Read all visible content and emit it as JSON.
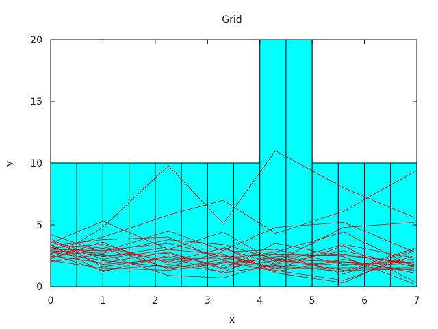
{
  "chart_data": {
    "type": "bar",
    "title": "Grid",
    "xlabel": "x",
    "ylabel": "y",
    "xlim": [
      0,
      7
    ],
    "ylim": [
      0,
      20
    ],
    "xticks": [
      0,
      1,
      2,
      3,
      4,
      5,
      6,
      7
    ],
    "yticks": [
      0,
      5,
      10,
      15,
      20
    ],
    "grid": false,
    "legend": "none",
    "bar_color": "#00ffff",
    "line_color": "#e60000",
    "bars": [
      {
        "x0": 0.0,
        "x1": 0.5,
        "value": 10
      },
      {
        "x0": 0.5,
        "x1": 1.0,
        "value": 10
      },
      {
        "x0": 1.0,
        "x1": 1.5,
        "value": 10
      },
      {
        "x0": 1.5,
        "x1": 2.0,
        "value": 10
      },
      {
        "x0": 2.0,
        "x1": 2.5,
        "value": 10
      },
      {
        "x0": 2.5,
        "x1": 3.0,
        "value": 10
      },
      {
        "x0": 3.0,
        "x1": 3.5,
        "value": 10
      },
      {
        "x0": 3.5,
        "x1": 4.0,
        "value": 10
      },
      {
        "x0": 4.0,
        "x1": 4.5,
        "value": 20
      },
      {
        "x0": 4.5,
        "x1": 5.0,
        "value": 20
      },
      {
        "x0": 5.0,
        "x1": 5.5,
        "value": 10
      },
      {
        "x0": 5.5,
        "x1": 6.0,
        "value": 10
      },
      {
        "x0": 6.0,
        "x1": 6.5,
        "value": 10
      },
      {
        "x0": 6.5,
        "x1": 7.0,
        "value": 10
      }
    ],
    "x": [
      0,
      1.0,
      2.25,
      3.3,
      4.3,
      5.6,
      6.95
    ],
    "series": [
      {
        "values": [
          2.2,
          4.8,
          9.8,
          5.1,
          11.0,
          8.0,
          5.6
        ]
      },
      {
        "values": [
          3.0,
          4.0,
          5.8,
          7.0,
          4.3,
          6.1,
          9.3
        ]
      },
      {
        "values": [
          3.5,
          5.3,
          3.0,
          4.4,
          2.0,
          4.8,
          5.2
        ]
      },
      {
        "values": [
          4.2,
          2.8,
          4.5,
          2.9,
          4.8,
          5.2,
          2.8
        ]
      },
      {
        "values": [
          2.7,
          3.2,
          2.0,
          3.1,
          1.8,
          2.9,
          1.6
        ]
      },
      {
        "values": [
          3.0,
          2.9,
          3.5,
          2.4,
          2.6,
          2.5,
          1.9
        ]
      },
      {
        "values": [
          2.9,
          2.5,
          2.7,
          1.5,
          2.1,
          1.7,
          2.2
        ]
      },
      {
        "values": [
          2.4,
          3.1,
          1.5,
          2.0,
          1.3,
          0.5,
          2.5
        ]
      },
      {
        "values": [
          3.2,
          1.8,
          2.2,
          2.3,
          1.6,
          2.0,
          1.7
        ]
      },
      {
        "values": [
          2.6,
          1.3,
          1.8,
          1.2,
          2.7,
          1.0,
          3.0
        ]
      },
      {
        "values": [
          3.6,
          2.2,
          3.0,
          2.6,
          1.4,
          3.3,
          0.4
        ]
      },
      {
        "values": [
          2.1,
          1.5,
          1.3,
          1.9,
          2.3,
          1.3,
          1.4
        ]
      },
      {
        "values": [
          3.3,
          3.8,
          4.0,
          2.1,
          1.2,
          2.2,
          1.1
        ]
      },
      {
        "values": [
          2.8,
          2.1,
          1.6,
          2.8,
          3.0,
          1.8,
          2.0
        ]
      },
      {
        "values": [
          3.4,
          1.2,
          2.5,
          1.7,
          2.4,
          2.6,
          1.8
        ]
      },
      {
        "values": [
          2.0,
          2.6,
          0.9,
          0.7,
          1.9,
          3.4,
          2.3
        ]
      },
      {
        "values": [
          3.1,
          3.4,
          1.9,
          2.5,
          1.5,
          1.5,
          1.5
        ]
      },
      {
        "values": [
          2.5,
          1.9,
          2.8,
          1.4,
          3.5,
          2.4,
          0.2
        ]
      },
      {
        "values": [
          3.7,
          2.4,
          3.2,
          3.2,
          1.1,
          0.3,
          2.9
        ]
      },
      {
        "values": [
          2.3,
          3.6,
          1.4,
          2.2,
          2.8,
          4.4,
          1.6
        ]
      },
      {
        "values": [
          3.9,
          1.6,
          2.4,
          1.1,
          1.7,
          1.2,
          3.1
        ]
      },
      {
        "values": [
          2.9,
          2.7,
          3.8,
          3.4,
          2.2,
          2.0,
          1.3
        ]
      }
    ]
  }
}
